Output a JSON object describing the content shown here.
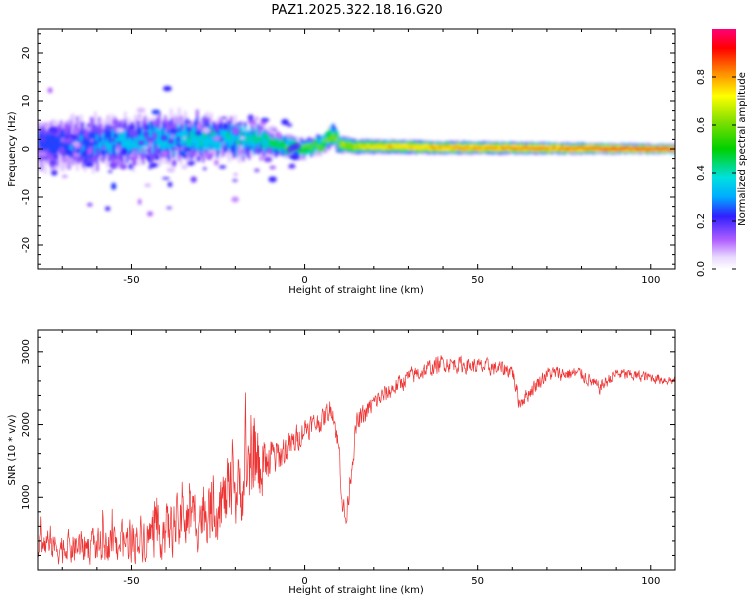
{
  "title": "PAZ1.2025.322.18.16.G20",
  "chart_data": [
    {
      "type": "heatmap",
      "xlabel": "Height of straight line (km)",
      "ylabel": "Frequency (Hz)",
      "xlim": [
        -77,
        107
      ],
      "ylim": [
        -25,
        25
      ],
      "xticks": [
        -50,
        0,
        50,
        100
      ],
      "xtick_labels": [
        "-50",
        "0",
        "50",
        "100"
      ],
      "yticks": [
        -20,
        -10,
        0,
        10,
        20
      ],
      "ytick_labels": [
        "-20",
        "-10",
        "0",
        "10",
        "20"
      ],
      "colorbar": {
        "label": "Normalized spectral amplitude",
        "range": [
          0,
          1
        ],
        "ticks": [
          0.0,
          0.2,
          0.4,
          0.6,
          0.8
        ],
        "tick_labels": [
          "0.0",
          "0.2",
          "0.4",
          "0.6",
          "0.8"
        ]
      },
      "ridge": {
        "description_points_x": [
          -77,
          -60,
          -45,
          -30,
          -20,
          -12,
          -5,
          0,
          5,
          8,
          10,
          15,
          25,
          40,
          60,
          80,
          107
        ],
        "center_freq": [
          1.0,
          1.0,
          2.0,
          2.5,
          2.0,
          1.5,
          0.5,
          0.0,
          1.0,
          3.0,
          1.0,
          0.5,
          0.5,
          0.3,
          0.2,
          0.1,
          0.0
        ],
        "halfwidth": [
          5.0,
          5.0,
          4.5,
          4.0,
          3.5,
          2.5,
          2.0,
          1.8,
          1.8,
          2.0,
          1.8,
          1.6,
          1.5,
          1.4,
          1.3,
          1.2,
          1.0
        ],
        "peak_amplitude": [
          0.3,
          0.35,
          0.4,
          0.45,
          0.45,
          0.5,
          0.55,
          0.6,
          0.6,
          0.65,
          0.7,
          0.75,
          0.8,
          0.85,
          0.88,
          0.9,
          0.95
        ]
      }
    },
    {
      "type": "line",
      "xlabel": "Height of straight line (km)",
      "ylabel": "SNR (10 * v/v)",
      "xlim": [
        -77,
        107
      ],
      "ylim": [
        0,
        3300
      ],
      "xticks": [
        -50,
        0,
        50,
        100
      ],
      "xtick_labels": [
        "-50",
        "0",
        "50",
        "100"
      ],
      "yticks": [
        1000,
        2000,
        3000
      ],
      "ytick_labels": [
        "1000",
        "2000",
        "3000"
      ],
      "series": [
        {
          "name": "SNR",
          "color": "#ee3333",
          "x": [
            -77,
            -70,
            -60,
            -50,
            -40,
            -30,
            -20,
            -12,
            -8,
            -3,
            0,
            5,
            8,
            10,
            11,
            12,
            13,
            15,
            20,
            30,
            40,
            50,
            60,
            62,
            70,
            80,
            85,
            90,
            100,
            107
          ],
          "y": [
            350,
            300,
            330,
            400,
            550,
            750,
            1050,
            1450,
            1550,
            1750,
            1950,
            2050,
            2250,
            1600,
            900,
            650,
            1200,
            2000,
            2300,
            2650,
            2850,
            2800,
            2750,
            2300,
            2700,
            2700,
            2500,
            2700,
            2650,
            2600
          ],
          "noise": [
            300,
            300,
            320,
            380,
            480,
            580,
            680,
            650,
            350,
            280,
            220,
            200,
            220,
            250,
            250,
            250,
            250,
            220,
            180,
            170,
            160,
            150,
            150,
            150,
            140,
            130,
            130,
            120,
            100,
            100
          ]
        }
      ]
    }
  ],
  "colors": {
    "line": "#ee3333",
    "axis": "#000000"
  }
}
